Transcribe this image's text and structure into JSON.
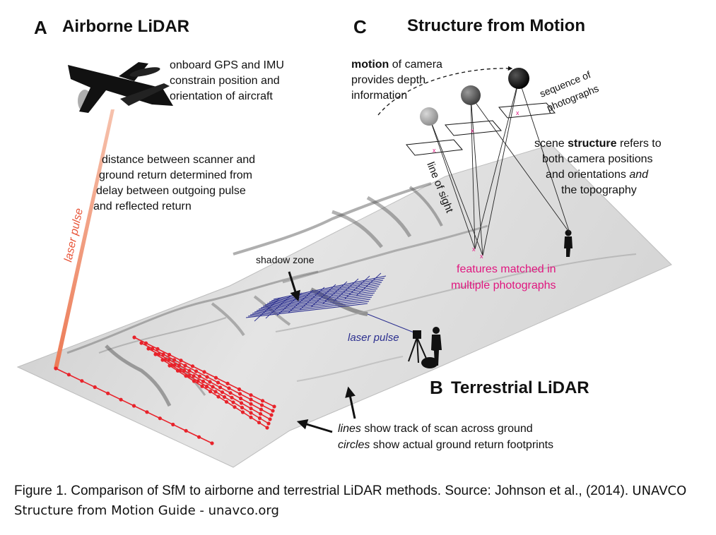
{
  "panels": {
    "a": {
      "letter": "A",
      "title": "Airborne LiDAR"
    },
    "b": {
      "letter": "B",
      "title": "Terrestrial LiDAR"
    },
    "c": {
      "letter": "C",
      "title": "Structure from Motion"
    }
  },
  "annotations": {
    "gps_imu": [
      "onboard GPS and IMU",
      "constrain position and",
      "orientation of aircraft"
    ],
    "distance": [
      "distance between scanner and",
      "ground return determined from",
      "delay between outgoing pulse",
      "and reflected return"
    ],
    "laser_pulse_airborne": "laser pulse",
    "shadow_zone": "shadow zone",
    "laser_pulse_terrestrial": "laser pulse",
    "motion": {
      "bold": "motion",
      "rest": " of camera",
      "line2": "provides depth",
      "line3": "information"
    },
    "sequence": [
      "sequence of",
      "photographs"
    ],
    "structure": {
      "line1_pre": "scene ",
      "line1_bold": "structure",
      "line1_post": " refers to",
      "line2": "both camera positions",
      "line3_pre": "and orientations ",
      "line3_italic": "and",
      "line4": "the topography"
    },
    "line_of_sight": "line of sight",
    "features": [
      "features matched in",
      "multiple photographs"
    ],
    "tracks": {
      "l1_italic": "lines",
      "l1_rest": " show track of scan across ground",
      "l2_italic": "circles",
      "l2_rest": " show actual ground return footprints"
    }
  },
  "caption": {
    "main": "Figure 1. Comparison of SfM to airborne and terrestrial LiDAR methods. Source: Johnson et al., (2014).",
    "source": "UNAVCO Structure from Motion Guide - unavco.org"
  },
  "colors": {
    "laser_red": "#e8232b",
    "laser_beam": "#f08a6a",
    "terrestrial_blue": "#2b2f8f",
    "feature_magenta": "#e0167f",
    "terrain": "#d4d4d4"
  }
}
